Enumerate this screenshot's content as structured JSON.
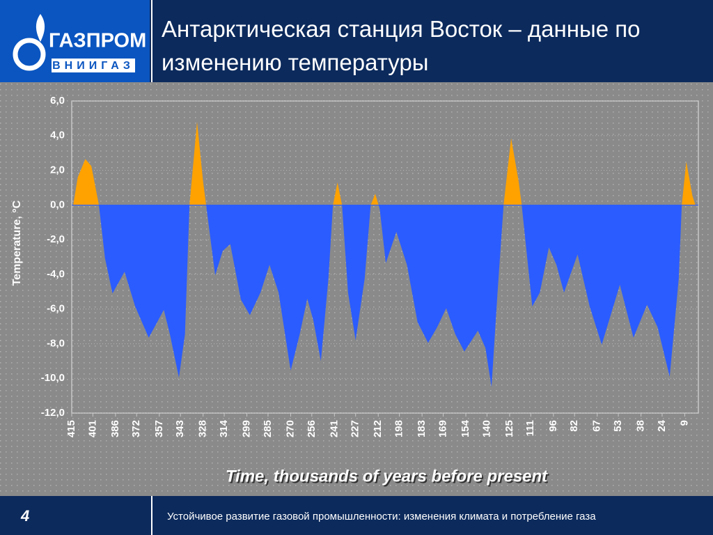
{
  "header": {
    "logo": "ГАЗПРОМ",
    "logo_sub": "ВНИИГАЗ",
    "title": "Антарктическая станция Восток – данные по изменению температуры"
  },
  "chart_data": {
    "type": "area",
    "ylabel": "Temperature, °C",
    "xlabel": "Time, thousands of years before present",
    "x": [
      414,
      411,
      406,
      402,
      397,
      393,
      388,
      380,
      373,
      364,
      359,
      354,
      350,
      344,
      340,
      337,
      332,
      328,
      326,
      320,
      315,
      310,
      303,
      297,
      290,
      284,
      278,
      270,
      264,
      259,
      255,
      250,
      245,
      242,
      239,
      236,
      232,
      227,
      221,
      217,
      214,
      211,
      207,
      200,
      193,
      186,
      179,
      173,
      167,
      161,
      155,
      146,
      141,
      137,
      133,
      129,
      124,
      119,
      117,
      110,
      105,
      99,
      94,
      89,
      80,
      72,
      64,
      52,
      43,
      34,
      27,
      19,
      13,
      11,
      8,
      4,
      2
    ],
    "values": [
      0,
      1.6,
      2.65,
      2.25,
      0,
      -3.05,
      -5.1,
      -3.85,
      -5.85,
      -7.65,
      -6.85,
      -6.05,
      -7.45,
      -9.95,
      -7.45,
      0,
      4.8,
      1.35,
      0,
      -4.05,
      -2.65,
      -2.25,
      -5.45,
      -6.35,
      -5.05,
      -3.45,
      -5.05,
      -9.55,
      -7.45,
      -5.4,
      -6.65,
      -9.0,
      -4.25,
      0,
      1.3,
      0,
      -5.05,
      -7.8,
      -4.25,
      0,
      0.65,
      -0.25,
      -3.35,
      -1.55,
      -3.45,
      -6.75,
      -7.95,
      -7.05,
      -5.95,
      -7.45,
      -8.45,
      -7.25,
      -8.25,
      -10.5,
      -5.05,
      0,
      3.85,
      1.35,
      0,
      -5.85,
      -5.05,
      -2.45,
      -3.45,
      -5.05,
      -2.85,
      -5.85,
      -8.05,
      -4.6,
      -7.65,
      -5.75,
      -7.05,
      -9.9,
      -4.25,
      0,
      2.5,
      0.55,
      0
    ],
    "positive_color": "#ffa200",
    "negative_color": "#2b5cff",
    "xlim": [
      415,
      0
    ],
    "xticks": [
      415,
      401,
      386,
      372,
      357,
      343,
      328,
      314,
      299,
      285,
      270,
      256,
      241,
      227,
      212,
      198,
      183,
      169,
      154,
      140,
      125,
      111,
      96,
      82,
      67,
      53,
      38,
      24,
      9
    ],
    "ylim": [
      -12,
      6
    ],
    "yticks": [
      {
        "value": -12,
        "label": "-12,0"
      },
      {
        "value": -10,
        "label": "-10,0"
      },
      {
        "value": -8,
        "label": "-8,0"
      },
      {
        "value": -6,
        "label": "-6,0"
      },
      {
        "value": -4,
        "label": "-4,0"
      },
      {
        "value": -2,
        "label": "-2,0"
      },
      {
        "value": 0,
        "label": "0,0"
      },
      {
        "value": 2,
        "label": "2,0"
      },
      {
        "value": 4,
        "label": "4,0"
      },
      {
        "value": 6,
        "label": "6,0"
      }
    ],
    "grid": true
  },
  "footer": {
    "page": "4",
    "text": "Устойчивое развитие газовой  промышленности: изменения климата и потребление газа"
  }
}
